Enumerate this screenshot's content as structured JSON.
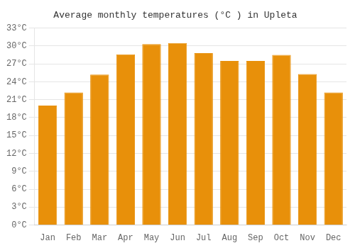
{
  "chart_data": {
    "type": "bar",
    "title": "Average monthly temperatures (°C ) in Upleta",
    "categories": [
      "Jan",
      "Feb",
      "Mar",
      "Apr",
      "May",
      "Jun",
      "Jul",
      "Aug",
      "Sep",
      "Oct",
      "Nov",
      "Dec"
    ],
    "values": [
      20.0,
      22.2,
      25.2,
      28.6,
      30.3,
      30.5,
      28.8,
      27.5,
      27.5,
      28.5,
      25.3,
      22.2
    ],
    "color": "#E8900A",
    "ylim": [
      0,
      33
    ],
    "yticks": [
      {
        "value": 0,
        "label": "0°C"
      },
      {
        "value": 3,
        "label": "3°C"
      },
      {
        "value": 6,
        "label": "6°C"
      },
      {
        "value": 9,
        "label": "9°C"
      },
      {
        "value": 12,
        "label": "12°C"
      },
      {
        "value": 15,
        "label": "15°C"
      },
      {
        "value": 18,
        "label": "18°C"
      },
      {
        "value": 21,
        "label": "21°C"
      },
      {
        "value": 24,
        "label": "24°C"
      },
      {
        "value": 27,
        "label": "27°C"
      },
      {
        "value": 30,
        "label": "30°C"
      },
      {
        "value": 33,
        "label": "33°C"
      }
    ],
    "grid": true
  }
}
